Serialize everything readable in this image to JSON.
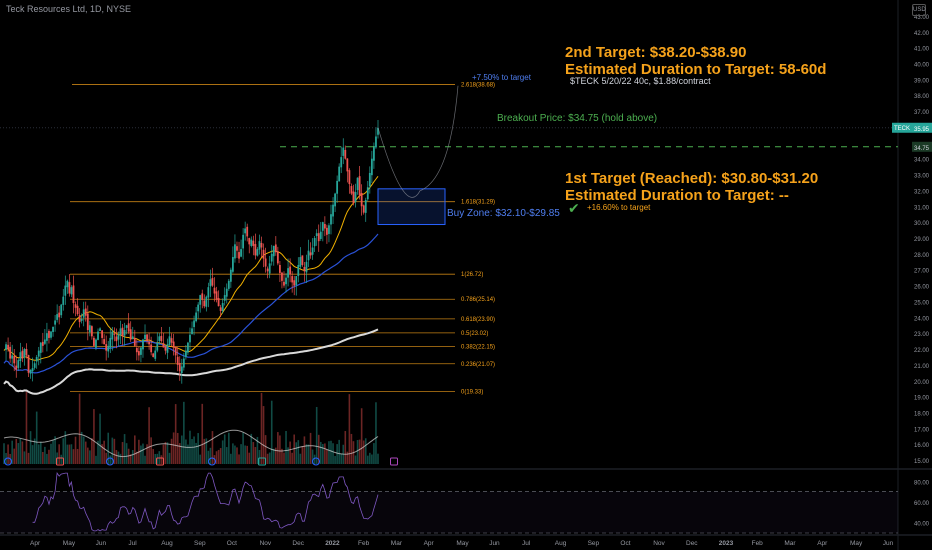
{
  "header": {
    "symbol": "Teck Resources Ltd, 1D, NYSE",
    "currency": "USD"
  },
  "annotations": {
    "target2_line1": "2nd Target: $38.20-$38.90",
    "target2_line2": "Estimated Duration to Target: 58-60d",
    "option_note": "$TECK 5/20/22 40c, $1.88/contract",
    "pct_to_target2": "+7.50% to target",
    "breakout": "Breakout Price: $34.75 (hold above)",
    "target1_line1": "1st Target (Reached): $30.80-$31.20",
    "target1_line2": "Estimated Duration to Target: --",
    "pct_target1": "+16.60% to target",
    "buy_zone": "Buy Zone: $32.10-$29.85"
  },
  "colors": {
    "background": "#000000",
    "candle_up": "#26a69a",
    "candle_down": "#ef5350",
    "fib_line": "#f5a21b",
    "annotation_orange": "#f5a21b",
    "ema_short": "#f0b000",
    "ema_mid": "#2a52d8",
    "sma_long": "#d9d9d9",
    "rsi": "#7e57c2",
    "buy_zone": "#2962ff",
    "breakout": "#4caf50",
    "check": "#4caf50"
  },
  "chart_data": {
    "type": "candlestick",
    "ylim": [
      14.5,
      43.5
    ],
    "price_ticks": [
      15.0,
      16.0,
      17.0,
      18.0,
      19.0,
      20.0,
      21.0,
      22.0,
      23.0,
      24.0,
      25.0,
      26.0,
      27.0,
      28.0,
      29.0,
      30.0,
      31.0,
      32.0,
      33.0,
      34.0,
      36.0,
      37.0,
      38.0,
      39.0,
      40.0,
      41.0,
      42.0,
      43.0
    ],
    "x_labels": [
      "Apr",
      "May",
      "Jun",
      "Jul",
      "Aug",
      "Sep",
      "Oct",
      "Nov",
      "Dec",
      "2022",
      "Feb",
      "Mar",
      "Apr",
      "May",
      "Jun",
      "Jul",
      "Aug",
      "Sep",
      "Oct",
      "Nov",
      "Dec",
      "2023",
      "Feb",
      "Mar",
      "Apr",
      "May",
      "Jun"
    ],
    "last_price": 35.95,
    "last_price_label": "35.95",
    "ticker_badge": "TECK",
    "breakout_price": 34.75,
    "breakout_price_label": "34.75",
    "fib_levels": [
      {
        "label": "0(19.33)",
        "value": 19.33
      },
      {
        "label": "0.236(21.07)",
        "value": 21.07
      },
      {
        "label": "0.382(22.15)",
        "value": 22.15
      },
      {
        "label": "0.5(23.02)",
        "value": 23.02
      },
      {
        "label": "0.618(23.90)",
        "value": 23.9
      },
      {
        "label": "0.786(25.14)",
        "value": 25.14
      },
      {
        "label": "1(26.72)",
        "value": 26.72
      },
      {
        "label": "1.618(31.29)",
        "value": 31.29
      },
      {
        "label": "2.618(38.68)",
        "value": 38.68
      }
    ],
    "buy_zone": [
      29.85,
      32.1
    ],
    "daily_closes_approx": [
      22.0,
      22.3,
      22.0,
      21.4,
      21.6,
      21.1,
      20.7,
      21.3,
      21.8,
      21.4,
      22.0,
      21.6,
      20.5,
      20.7,
      20.8,
      21.1,
      21.5,
      21.9,
      22.4,
      22.2,
      22.6,
      23.0,
      22.7,
      23.1,
      23.4,
      23.8,
      24.2,
      24.0,
      24.8,
      25.3,
      26.0,
      26.3,
      25.5,
      25.9,
      24.9,
      24.6,
      24.2,
      23.7,
      23.9,
      24.5,
      24.1,
      23.2,
      23.5,
      22.8,
      22.2,
      22.6,
      23.1,
      23.3,
      22.7,
      22.3,
      21.9,
      22.2,
      22.7,
      23.1,
      22.9,
      22.5,
      22.9,
      23.3,
      22.8,
      23.2,
      23.5,
      23.1,
      22.6,
      22.8,
      22.2,
      21.8,
      21.6,
      22.1,
      22.6,
      22.9,
      22.5,
      22.3,
      21.8,
      21.5,
      21.9,
      22.4,
      22.8,
      22.5,
      22.1,
      21.9,
      22.3,
      22.8,
      22.4,
      22.1,
      21.6,
      21.0,
      20.6,
      20.9,
      21.4,
      21.9,
      22.4,
      22.9,
      23.3,
      23.8,
      24.3,
      24.8,
      25.4,
      25.1,
      24.7,
      25.3,
      25.9,
      26.4,
      26.0,
      25.5,
      25.1,
      24.7,
      24.4,
      24.9,
      25.4,
      25.8,
      26.3,
      27.0,
      27.8,
      28.6,
      28.2,
      27.7,
      28.3,
      29.2,
      29.6,
      29.1,
      28.6,
      28.9,
      28.5,
      27.9,
      28.3,
      28.8,
      28.4,
      27.7,
      27.2,
      26.9,
      27.4,
      28.0,
      28.5,
      28.1,
      27.4,
      26.8,
      26.3,
      26.0,
      26.5,
      27.1,
      26.7,
      26.2,
      26.0,
      26.6,
      27.3,
      27.8,
      27.3,
      26.9,
      27.5,
      28.2,
      27.9,
      28.4,
      29.0,
      29.3,
      28.8,
      29.4,
      30.0,
      29.6,
      29.2,
      29.8,
      30.5,
      31.1,
      31.8,
      32.6,
      33.5,
      34.1,
      34.7,
      34.0,
      33.2,
      32.4,
      31.8,
      31.2,
      31.9,
      32.8,
      31.7,
      31.0,
      30.6,
      31.4,
      32.2,
      33.1,
      34.0,
      34.8,
      35.4,
      35.95
    ],
    "volume_bars_count": 190,
    "rsi_ticks": [
      40.0,
      60.0,
      80.0
    ],
    "rsi_levels": [
      30,
      70
    ]
  }
}
